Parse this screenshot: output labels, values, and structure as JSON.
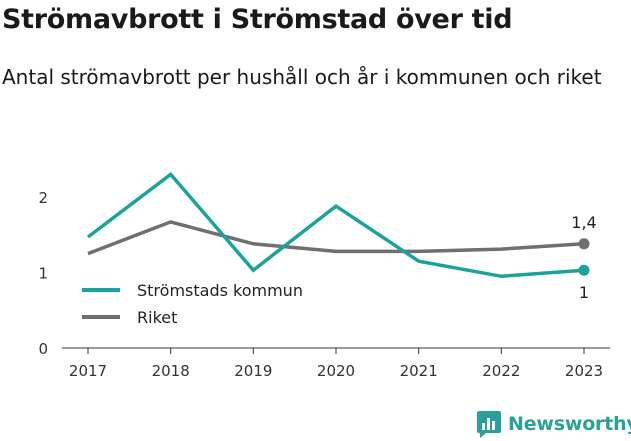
{
  "title": "Strömavbrott i Strömstad över tid",
  "subtitle": "Antal strömavbrott per hushåll och år i kommunen och riket",
  "brand": "Newsworthy",
  "chart_data": {
    "type": "line",
    "x": [
      "2017",
      "2018",
      "2019",
      "2020",
      "2021",
      "2022",
      "2023"
    ],
    "yticks": [
      "0",
      "1",
      "2"
    ],
    "ylim": [
      0,
      2.4
    ],
    "grid": false,
    "legend_position": "bottom-left",
    "series": [
      {
        "name": "Strömstads kommun",
        "color": "#1aa39a",
        "values": [
          1.47,
          2.3,
          1.03,
          1.88,
          1.15,
          0.95,
          1.03
        ],
        "end_label": "1"
      },
      {
        "name": "Riket",
        "color": "#6e6e73",
        "values": [
          1.25,
          1.67,
          1.38,
          1.28,
          1.28,
          1.31,
          1.38
        ],
        "end_label": "1,4"
      }
    ]
  }
}
